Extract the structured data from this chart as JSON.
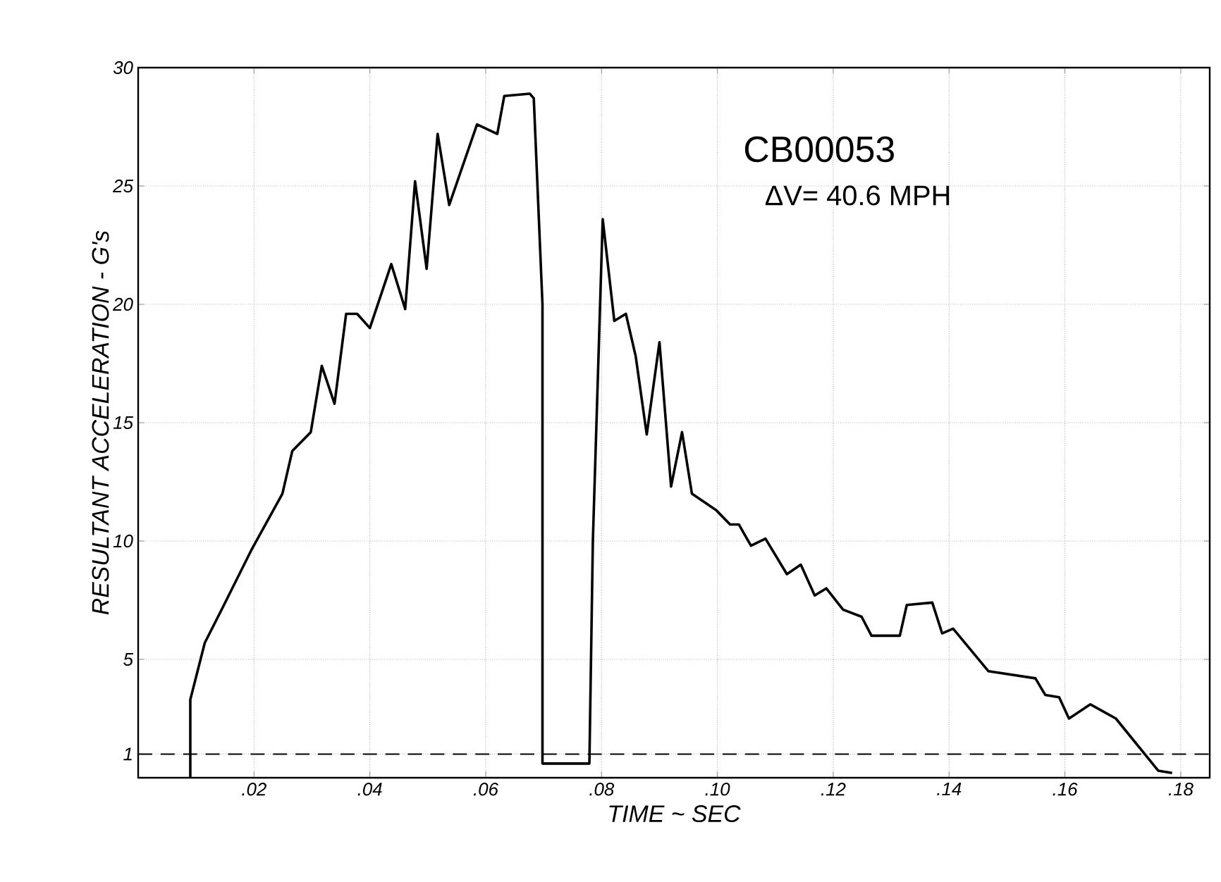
{
  "chart_data": {
    "type": "line",
    "xlabel": "TIME ~ SEC",
    "ylabel": "RESULTANT ACCELERATION - G's",
    "annotations": [
      "CB00053",
      "ΔV= 40.6 MPH"
    ],
    "xlim": [
      0,
      0.185
    ],
    "ylim": [
      0,
      30
    ],
    "xticks": [
      {
        "value": 0.02,
        "label": ".02"
      },
      {
        "value": 0.04,
        "label": ".04"
      },
      {
        "value": 0.06,
        "label": ".06"
      },
      {
        "value": 0.08,
        "label": ".08"
      },
      {
        "value": 0.1,
        "label": ".10"
      },
      {
        "value": 0.12,
        "label": ".12"
      },
      {
        "value": 0.14,
        "label": ".14"
      },
      {
        "value": 0.16,
        "label": ".16"
      },
      {
        "value": 0.18,
        "label": ".18"
      }
    ],
    "yticks": [
      1,
      5,
      10,
      15,
      20,
      25,
      30
    ],
    "grid": true,
    "ref_lines": [
      {
        "axis": "y",
        "value": 1,
        "line_style": "dashed",
        "color": "#000000"
      }
    ],
    "series": [
      {
        "color": "#000000",
        "x": [
          0.009,
          0.009,
          0.0115,
          0.0144,
          0.0195,
          0.0249,
          0.0266,
          0.0298,
          0.0317,
          0.0339,
          0.0359,
          0.0378,
          0.04,
          0.0437,
          0.0461,
          0.0478,
          0.0498,
          0.0517,
          0.0537,
          0.0585,
          0.062,
          0.0632,
          0.0676,
          0.0683,
          0.0698,
          0.0698,
          0.0779,
          0.0785,
          0.0802,
          0.0822,
          0.0842,
          0.0859,
          0.0878,
          0.09,
          0.092,
          0.0939,
          0.0956,
          0.0998,
          0.1022,
          0.1037,
          0.1058,
          0.1083,
          0.112,
          0.1144,
          0.1168,
          0.1188,
          0.1217,
          0.1249,
          0.1266,
          0.1315,
          0.1327,
          0.1371,
          0.1388,
          0.1407,
          0.1468,
          0.1549,
          0.1566,
          0.159,
          0.1607,
          0.1644,
          0.1688,
          0.1761,
          0.1785
        ],
        "values": [
          0,
          3.3,
          5.7,
          7.1,
          9.6,
          12.0,
          13.8,
          14.6,
          17.4,
          15.8,
          19.6,
          19.6,
          19.0,
          21.7,
          19.8,
          25.2,
          21.5,
          27.2,
          24.2,
          27.6,
          27.2,
          28.8,
          28.9,
          28.7,
          20.0,
          0.6,
          0.6,
          10.0,
          23.6,
          19.3,
          19.6,
          17.8,
          14.5,
          18.4,
          12.3,
          14.6,
          12.0,
          11.3,
          10.7,
          10.7,
          9.8,
          10.1,
          8.6,
          9.0,
          7.7,
          8.0,
          7.1,
          6.8,
          6.0,
          6.0,
          7.3,
          7.4,
          6.1,
          6.3,
          4.5,
          4.2,
          3.5,
          3.4,
          2.5,
          3.1,
          2.5,
          0.3,
          0.2
        ]
      }
    ]
  }
}
